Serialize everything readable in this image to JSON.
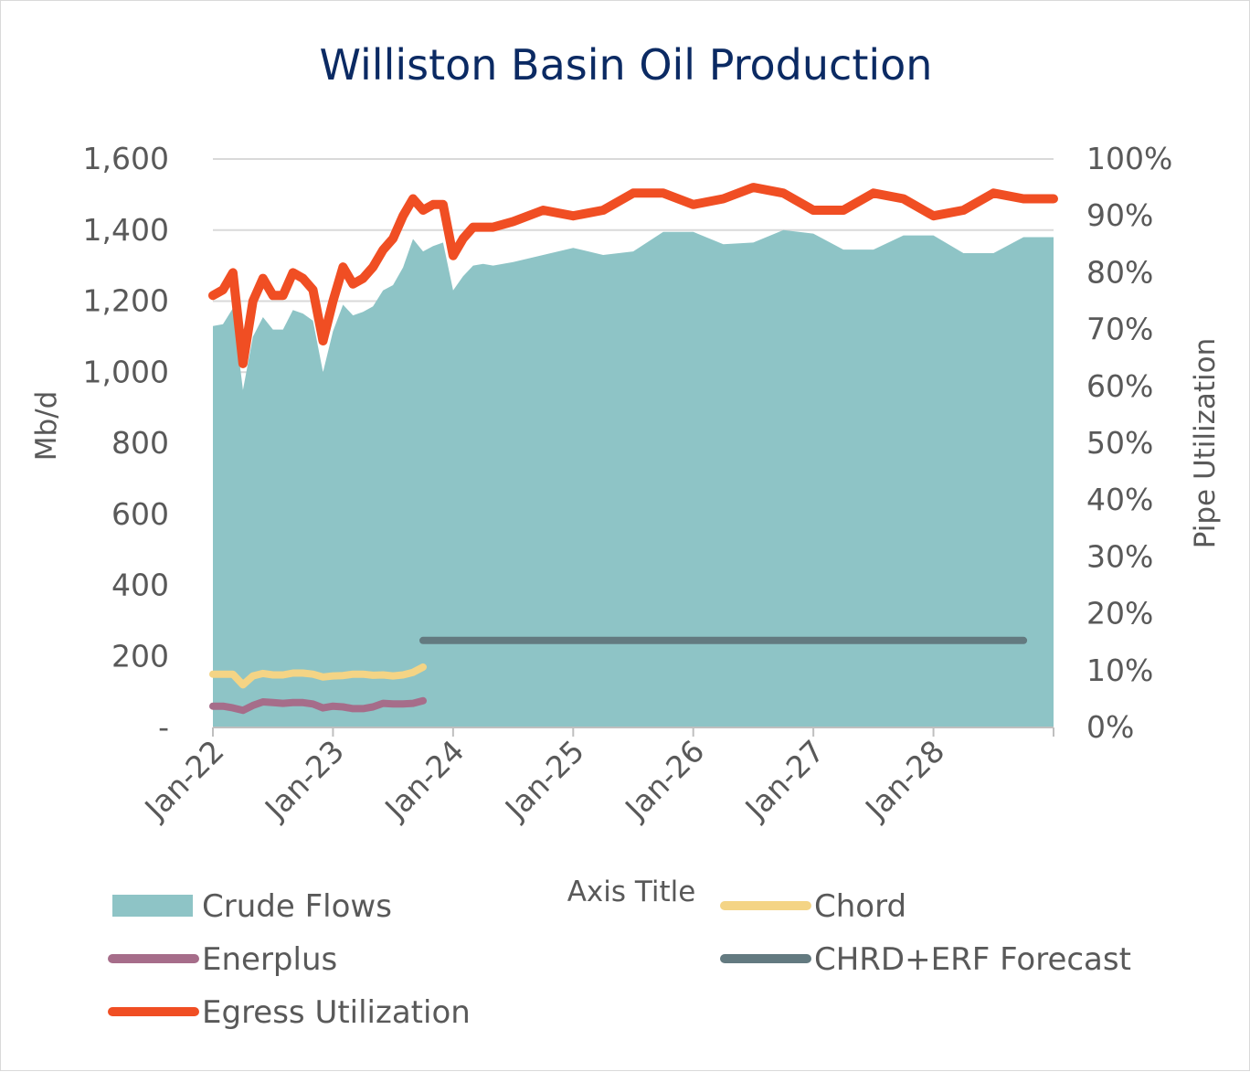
{
  "chart_data": {
    "type": "area",
    "title": "Williston Basin Oil Production",
    "xlabel": "Axis Title",
    "ylabel": "Mb/d",
    "y2label": "Pipe Utilization",
    "ylim": [
      0,
      1600
    ],
    "y2lim": [
      0,
      100
    ],
    "y_ticks": [
      "-",
      "200",
      "400",
      "600",
      "800",
      "1,000",
      "1,200",
      "1,400",
      "1,600"
    ],
    "y2_ticks": [
      "0%",
      "10%",
      "20%",
      "30%",
      "40%",
      "50%",
      "60%",
      "70%",
      "80%",
      "90%",
      "100%"
    ],
    "x_ticks": [
      "Jan-22",
      "Jan-23",
      "Jan-24",
      "Jan-25",
      "Jan-26",
      "Jan-27",
      "Jan-28"
    ],
    "x_unit": "months since Jan-22",
    "grid": true,
    "legend_position": "bottom",
    "colors": {
      "crude": "#8ec4c6",
      "chord": "#f4d485",
      "enerplus": "#a66d8a",
      "forecast": "#637a80",
      "egress": "#f04e23",
      "title": "#0b2a63"
    },
    "series": [
      {
        "name": "Crude Flows",
        "kind": "area",
        "axis": "left",
        "x": [
          0,
          1,
          2,
          3,
          4,
          5,
          6,
          7,
          8,
          9,
          10,
          11,
          12,
          13,
          14,
          15,
          16,
          17,
          18,
          19,
          20,
          21,
          22,
          23,
          24,
          25,
          26,
          27,
          28,
          30,
          33,
          36,
          39,
          42,
          45,
          48,
          51,
          54,
          57,
          60,
          63,
          66,
          69,
          72,
          75,
          78,
          81,
          84
        ],
        "values": [
          1130,
          1135,
          1180,
          950,
          1100,
          1155,
          1120,
          1120,
          1175,
          1165,
          1145,
          1000,
          1115,
          1190,
          1160,
          1170,
          1185,
          1230,
          1245,
          1295,
          1375,
          1340,
          1355,
          1365,
          1230,
          1270,
          1300,
          1305,
          1300,
          1310,
          1330,
          1350,
          1330,
          1340,
          1395,
          1395,
          1360,
          1365,
          1400,
          1390,
          1345,
          1345,
          1385,
          1385,
          1335,
          1335,
          1380,
          1380
        ]
      },
      {
        "name": "Chord",
        "kind": "line",
        "axis": "left",
        "x": [
          0,
          1,
          2,
          3,
          4,
          5,
          6,
          7,
          8,
          9,
          10,
          11,
          12,
          13,
          14,
          15,
          16,
          17,
          18,
          19,
          20,
          21
        ],
        "values": [
          150,
          150,
          150,
          120,
          145,
          152,
          148,
          148,
          153,
          153,
          150,
          142,
          145,
          146,
          150,
          150,
          147,
          148,
          145,
          148,
          155,
          170
        ]
      },
      {
        "name": "Enerplus",
        "kind": "line",
        "axis": "left",
        "x": [
          0,
          1,
          2,
          3,
          4,
          5,
          6,
          7,
          8,
          9,
          10,
          11,
          12,
          13,
          14,
          15,
          16,
          17,
          18,
          19,
          20,
          21
        ],
        "values": [
          60,
          60,
          55,
          48,
          62,
          72,
          70,
          68,
          70,
          70,
          66,
          55,
          60,
          58,
          53,
          53,
          58,
          68,
          66,
          66,
          68,
          75
        ]
      },
      {
        "name": "CHRD+ERF Forecast",
        "kind": "line",
        "axis": "left",
        "x": [
          21,
          81
        ],
        "values": [
          245,
          245
        ]
      },
      {
        "name": "Egress Utilization",
        "kind": "line",
        "axis": "right",
        "x": [
          0,
          1,
          2,
          3,
          4,
          5,
          6,
          7,
          8,
          9,
          10,
          11,
          12,
          13,
          14,
          15,
          16,
          17,
          18,
          19,
          20,
          21,
          22,
          23,
          24,
          25,
          26,
          27,
          28,
          30,
          33,
          36,
          39,
          42,
          45,
          48,
          51,
          54,
          57,
          60,
          63,
          66,
          69,
          72,
          75,
          78,
          81,
          84
        ],
        "values": [
          76,
          77,
          80,
          64,
          75,
          79,
          76,
          76,
          80,
          79,
          77,
          68,
          75,
          81,
          78,
          79,
          81,
          84,
          86,
          90,
          93,
          91,
          92,
          92,
          83,
          86,
          88,
          88,
          88,
          89,
          91,
          90,
          91,
          94,
          94,
          92,
          93,
          95,
          94,
          91,
          91,
          94,
          93,
          90,
          91,
          94,
          93,
          93
        ]
      }
    ],
    "legend": [
      {
        "label": "Crude Flows",
        "symbol": "box"
      },
      {
        "label": "Chord",
        "symbol": "line"
      },
      {
        "label": "Enerplus",
        "symbol": "line"
      },
      {
        "label": "CHRD+ERF Forecast",
        "symbol": "line"
      },
      {
        "label": "Egress Utilization",
        "symbol": "line"
      }
    ]
  }
}
